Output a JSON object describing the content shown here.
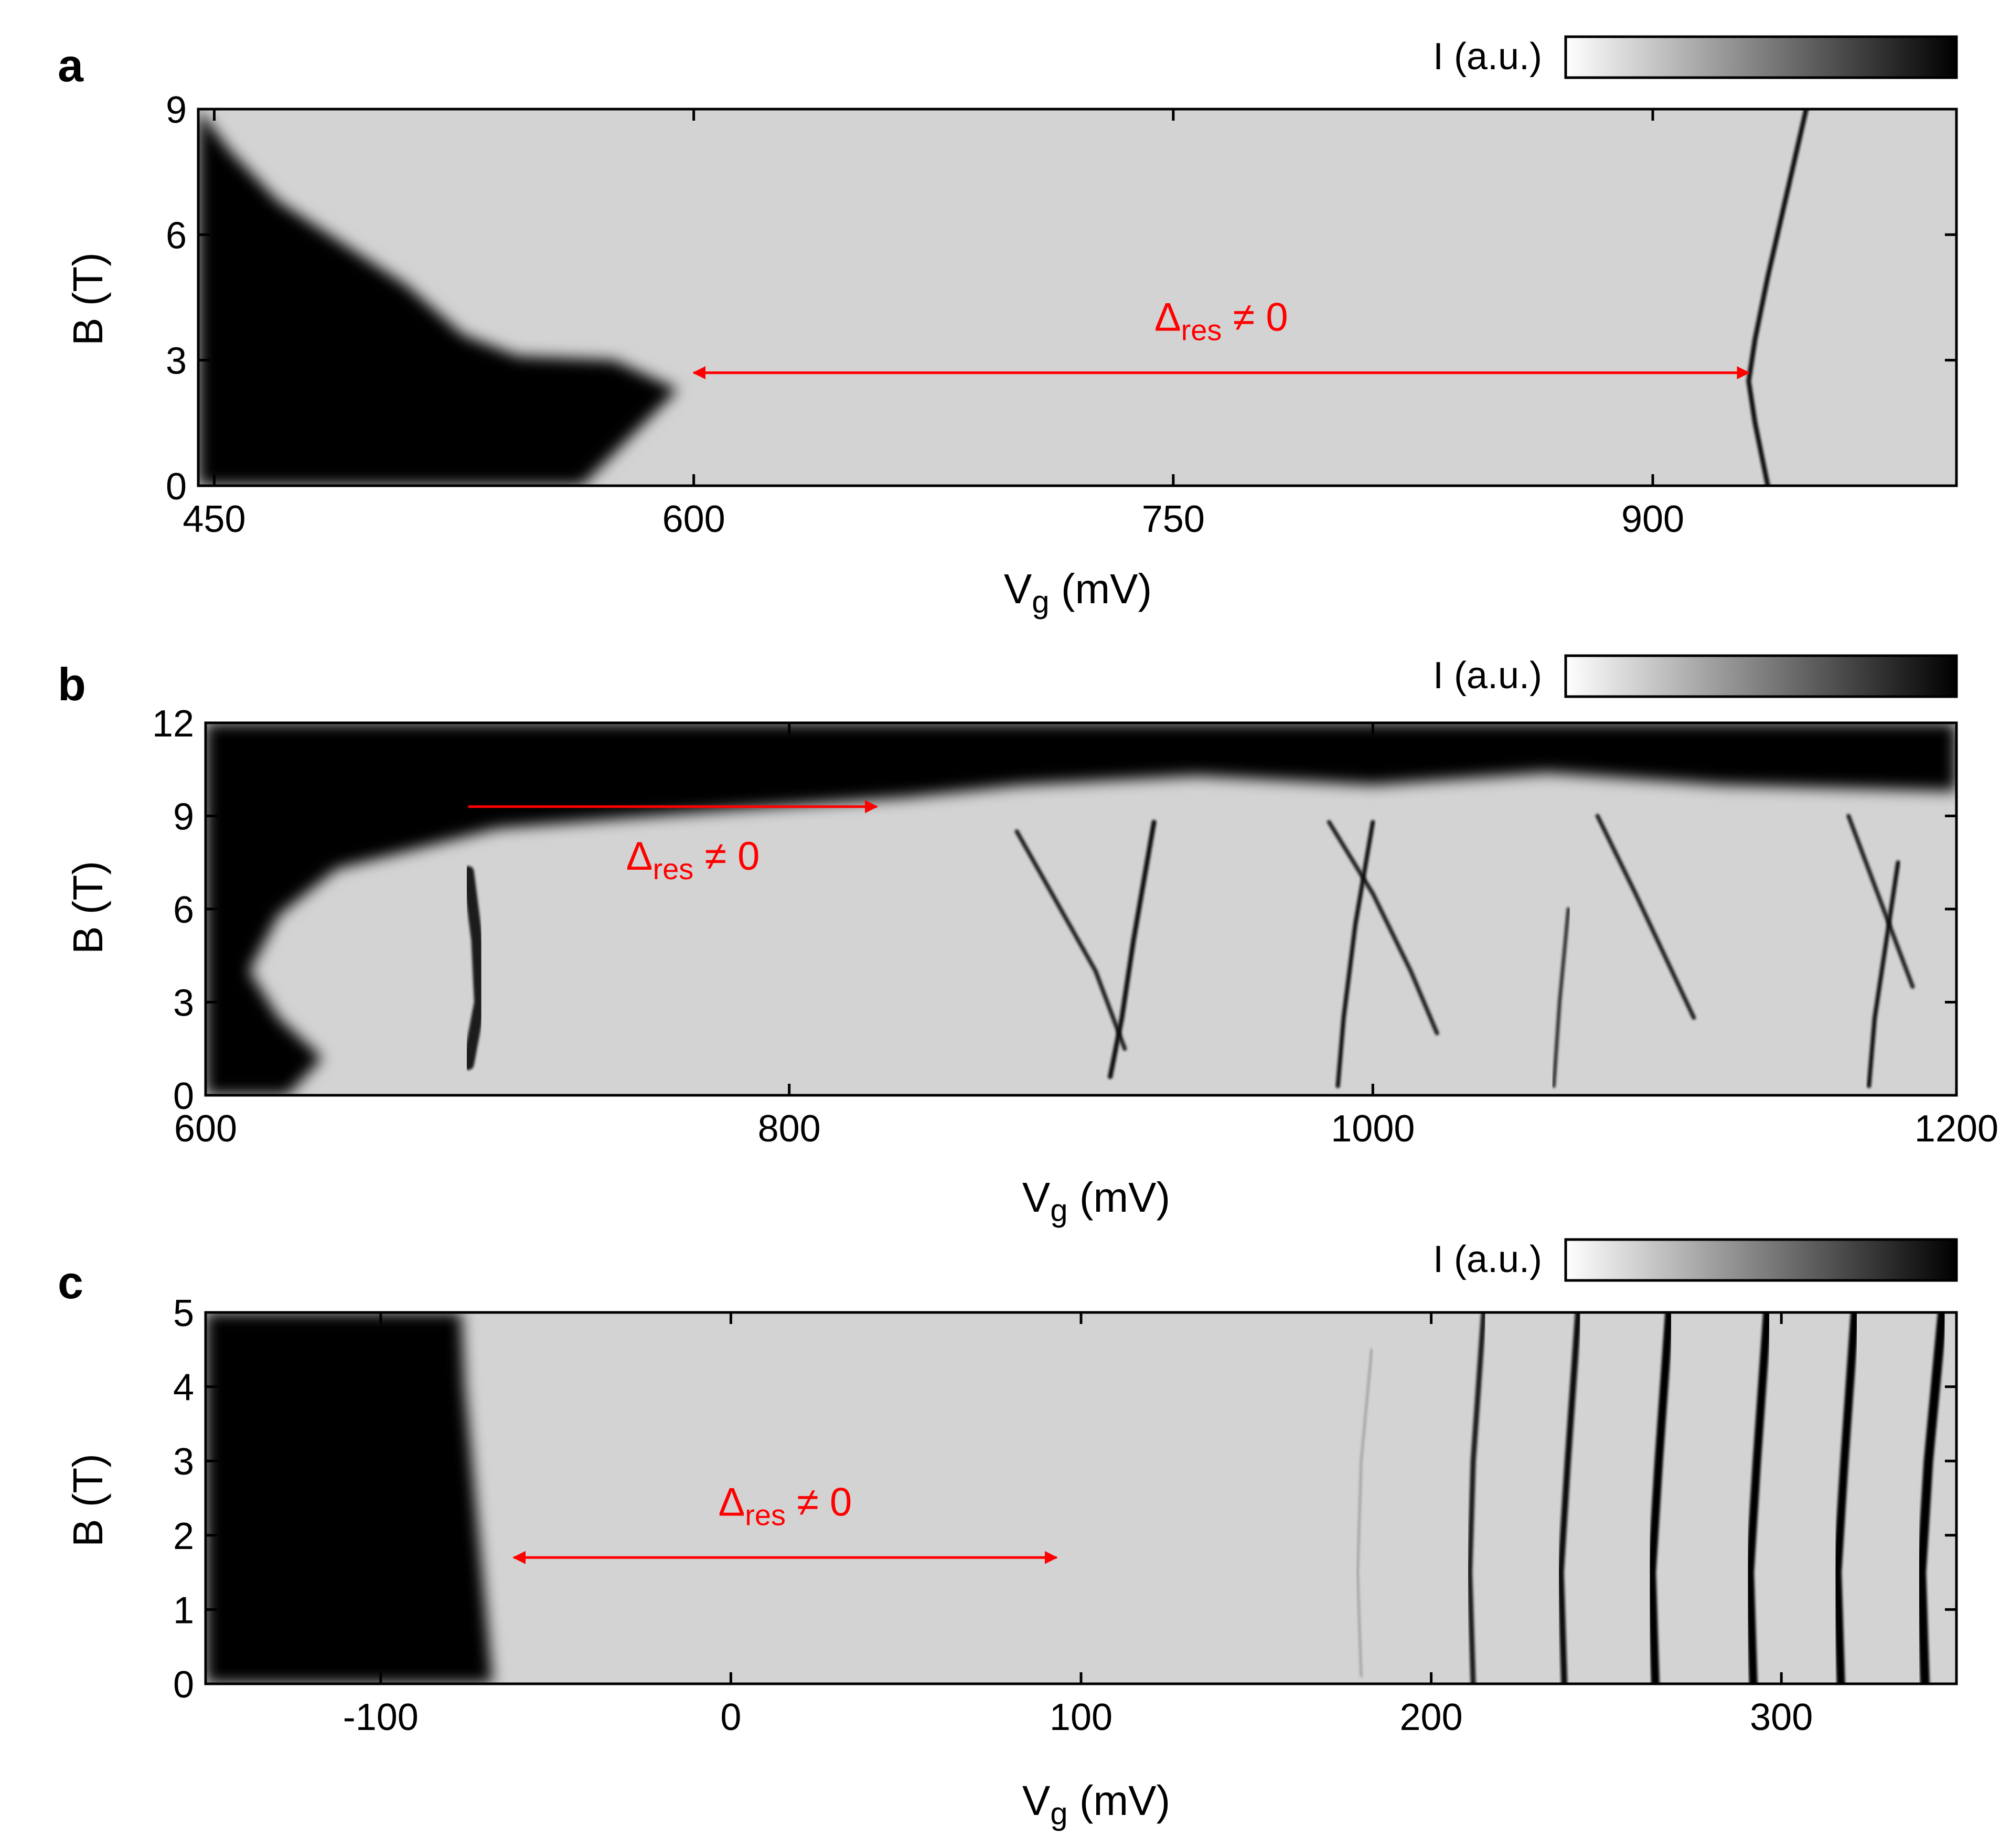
{
  "colors": {
    "annotation": "#ff0000",
    "background": "#d3d3d3",
    "conducting": "#000000",
    "axis": "#000000"
  },
  "chart_data": [
    {
      "type": "heatmap",
      "panel": "a",
      "xlabel_main": "V",
      "xlabel_sub": "g",
      "xlabel_unit": " (mV)",
      "ylabel": "B (T)",
      "xlim": [
        445,
        995
      ],
      "ylim": [
        0,
        9
      ],
      "xticks": [
        450,
        600,
        750,
        900
      ],
      "yticks": [
        0,
        3,
        6,
        9
      ],
      "colorbar_label": "I (a.u.)",
      "annotation": {
        "main": "Δ",
        "sub": "res",
        "rest": " ≠ 0",
        "x_start": 600,
        "x_end": 930,
        "y": 2.7
      },
      "dark_region": [
        [
          445,
          0
        ],
        [
          565,
          0
        ],
        [
          578,
          1.0
        ],
        [
          595,
          2.3
        ],
        [
          575,
          3.0
        ],
        [
          545,
          3.1
        ],
        [
          528,
          3.6
        ],
        [
          510,
          4.8
        ],
        [
          490,
          5.8
        ],
        [
          470,
          6.8
        ],
        [
          455,
          8.0
        ],
        [
          445,
          9
        ]
      ],
      "lines": [
        {
          "points": [
            [
              936,
              0
            ],
            [
              932,
              1.5
            ],
            [
              930,
              2.5
            ],
            [
              932,
              3.5
            ],
            [
              936,
              5.0
            ],
            [
              942,
              7.0
            ],
            [
              948,
              9
            ]
          ],
          "width": 9,
          "color": "#111111"
        }
      ]
    },
    {
      "type": "heatmap",
      "panel": "b",
      "xlabel_main": "V",
      "xlabel_sub": "g",
      "xlabel_unit": " (mV)",
      "ylabel": "B (T)",
      "xlim": [
        600,
        1200
      ],
      "ylim": [
        0,
        12
      ],
      "xticks": [
        600,
        800,
        1000,
        1200
      ],
      "yticks": [
        0,
        3,
        6,
        9,
        12
      ],
      "colorbar_label": "I (a.u.)",
      "annotation": {
        "main": "Δ",
        "sub": "res",
        "rest": " ≠ 0",
        "x_start": 690,
        "x_end": 830,
        "y": 9.3
      },
      "dark_region": [
        [
          600,
          0
        ],
        [
          628,
          0
        ],
        [
          640,
          1.2
        ],
        [
          625,
          2.5
        ],
        [
          615,
          4.0
        ],
        [
          625,
          5.8
        ],
        [
          645,
          7.3
        ],
        [
          700,
          8.6
        ],
        [
          780,
          9.2
        ],
        [
          840,
          9.6
        ],
        [
          880,
          10.0
        ],
        [
          940,
          10.3
        ],
        [
          1000,
          10.0
        ],
        [
          1060,
          10.4
        ],
        [
          1120,
          10.0
        ],
        [
          1200,
          9.8
        ],
        [
          1200,
          12
        ],
        [
          600,
          12
        ]
      ],
      "lines": [
        {
          "points": [
            [
              878,
              8.5
            ],
            [
              893,
              6.0
            ],
            [
              905,
              4.0
            ],
            [
              915,
              1.5
            ]
          ],
          "width": 8,
          "color": "#222222"
        },
        {
          "points": [
            [
              910,
              0.6
            ],
            [
              914,
              2.5
            ],
            [
              918,
              5.0
            ],
            [
              925,
              8.8
            ]
          ],
          "width": 9,
          "color": "#111111"
        },
        {
          "points": [
            [
              985,
              8.8
            ],
            [
              1000,
              6.5
            ],
            [
              1013,
              4.0
            ],
            [
              1022,
              2.0
            ]
          ],
          "width": 8,
          "color": "#222222"
        },
        {
          "points": [
            [
              988,
              0.3
            ],
            [
              990,
              2.5
            ],
            [
              994,
              5.5
            ],
            [
              1000,
              8.8
            ]
          ],
          "width": 8,
          "color": "#111111"
        },
        {
          "points": [
            [
              1077,
              9.0
            ],
            [
              1090,
              6.5
            ],
            [
              1100,
              4.5
            ],
            [
              1110,
              2.5
            ]
          ],
          "width": 8,
          "color": "#222222"
        },
        {
          "points": [
            [
              1062,
              0.3
            ],
            [
              1064,
              3.0
            ],
            [
              1067,
              6.0
            ]
          ],
          "width": 7,
          "color": "#333333"
        },
        {
          "points": [
            [
              1163,
              9.0
            ],
            [
              1175,
              6.0
            ],
            [
              1185,
              3.5
            ]
          ],
          "width": 8,
          "color": "#222222"
        },
        {
          "points": [
            [
              1170,
              0.3
            ],
            [
              1172,
              2.5
            ],
            [
              1176,
              5.0
            ],
            [
              1180,
              7.5
            ]
          ],
          "width": 8,
          "color": "#111111"
        },
        {
          "points": [
            [
              690,
              7.2
            ],
            [
              693,
              5.0
            ],
            [
              694,
              3.0
            ],
            [
              690,
              1.0
            ]
          ],
          "width": 22,
          "color": "#1a1a1a"
        }
      ]
    },
    {
      "type": "heatmap",
      "panel": "c",
      "xlabel_main": "V",
      "xlabel_sub": "g",
      "xlabel_unit": " (mV)",
      "ylabel": "B (T)",
      "xlim": [
        -150,
        350
      ],
      "ylim": [
        0,
        5
      ],
      "xticks": [
        -100,
        0,
        100,
        200,
        300
      ],
      "yticks": [
        0,
        1,
        2,
        3,
        4,
        5
      ],
      "colorbar_label": "I (a.u.)",
      "annotation": {
        "main": "Δ",
        "sub": "res",
        "rest": " ≠ 0",
        "x_start": -62,
        "x_end": 93,
        "y": 1.7
      },
      "dark_region": [
        [
          -150,
          0
        ],
        [
          -68,
          0
        ],
        [
          -70,
          1.0
        ],
        [
          -72,
          2.0
        ],
        [
          -74,
          3.0
        ],
        [
          -76,
          4.0
        ],
        [
          -77,
          5
        ],
        [
          -150,
          5
        ]
      ],
      "lines": [
        {
          "points": [
            [
              180,
              0.1
            ],
            [
              179,
              1.5
            ],
            [
              180,
              3.0
            ],
            [
              183,
              4.5
            ]
          ],
          "width": 4,
          "color": "#999999"
        },
        {
          "points": [
            [
              212,
              0
            ],
            [
              211,
              1.5
            ],
            [
              212,
              3.0
            ],
            [
              215,
              5
            ]
          ],
          "width": 10,
          "color": "#1a1a1a"
        },
        {
          "points": [
            [
              238,
              0
            ],
            [
              237,
              1.5
            ],
            [
              239,
              3.0
            ],
            [
              242,
              5
            ]
          ],
          "width": 12,
          "color": "#111111"
        },
        {
          "points": [
            [
              264,
              0
            ],
            [
              263,
              1.5
            ],
            [
              265,
              3.0
            ],
            [
              268,
              5
            ]
          ],
          "width": 16,
          "color": "#000000"
        },
        {
          "points": [
            [
              292,
              0
            ],
            [
              291,
              1.5
            ],
            [
              293,
              3.0
            ],
            [
              296,
              5
            ]
          ],
          "width": 16,
          "color": "#000000"
        },
        {
          "points": [
            [
              317,
              0
            ],
            [
              316,
              1.5
            ],
            [
              318,
              3.0
            ],
            [
              321,
              5
            ]
          ],
          "width": 16,
          "color": "#000000"
        },
        {
          "points": [
            [
              341,
              0
            ],
            [
              340,
              1.5
            ],
            [
              342,
              3.0
            ],
            [
              346,
              5
            ]
          ],
          "width": 18,
          "color": "#000000"
        }
      ]
    }
  ]
}
